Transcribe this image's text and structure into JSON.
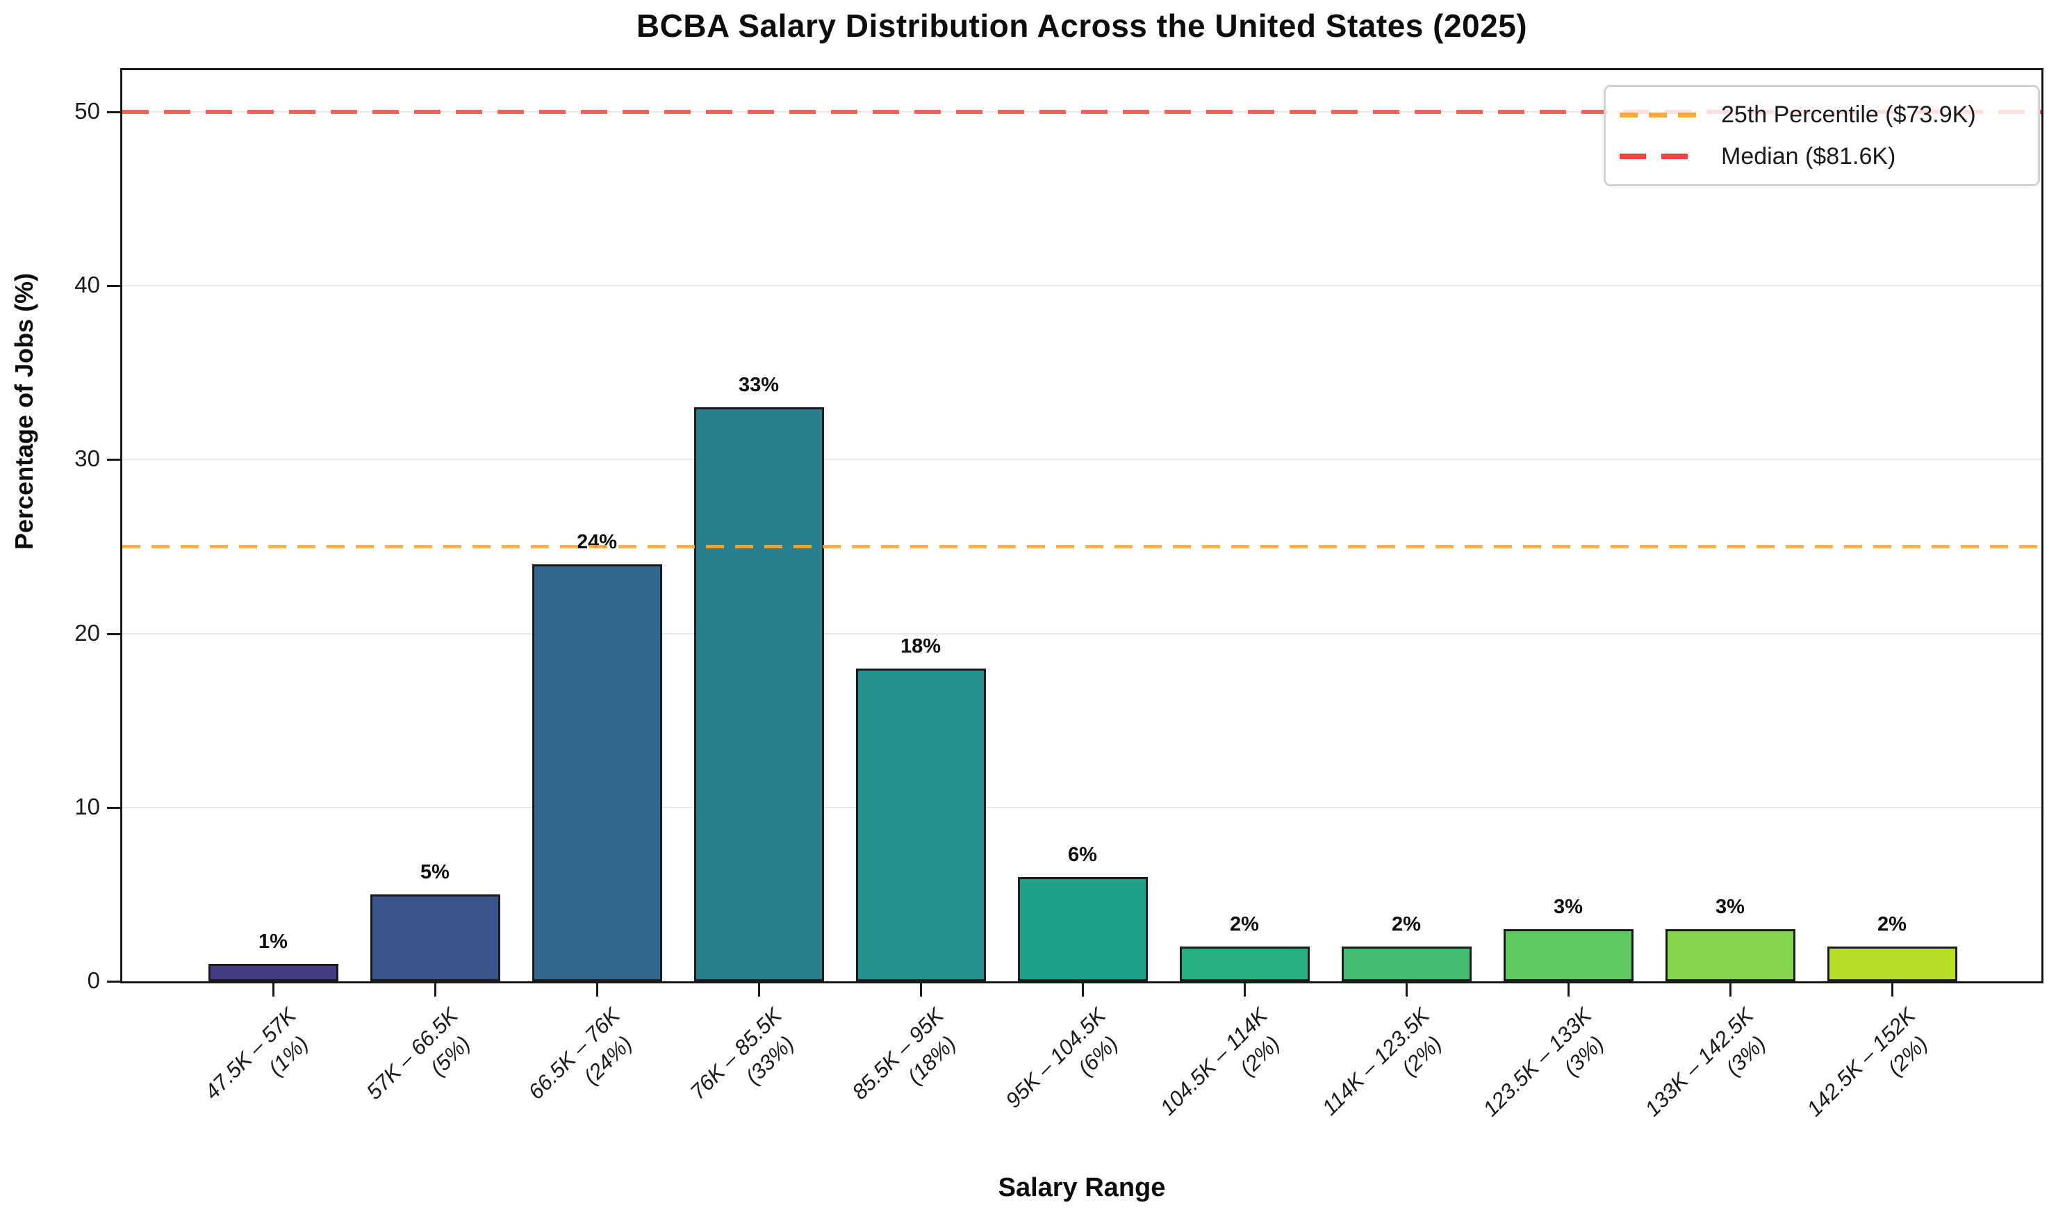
{
  "title": "BCBA Salary Distribution Across the United States (2025)",
  "chart_data": {
    "type": "bar",
    "title": "BCBA Salary Distribution Across the United States (2025)",
    "xlabel": "Salary Range",
    "ylabel": "Percentage of Jobs (%)",
    "ylim": [
      0,
      52.4
    ],
    "yticks": [
      0,
      10,
      20,
      30,
      40,
      50
    ],
    "grid": "horizontal-light-gray",
    "legend_position": "upper right",
    "categories": [
      "47.5K – 57K",
      "57K – 66.5K",
      "66.5K – 76K",
      "76K – 85.5K",
      "85.5K – 95K",
      "95K – 104.5K",
      "104.5K – 114K",
      "114K – 123.5K",
      "123.5K – 133K",
      "133K – 142.5K",
      "142.5K – 152K"
    ],
    "category_sublabels": [
      "(1%)",
      "(5%)",
      "(24%)",
      "(33%)",
      "(18%)",
      "(6%)",
      "(2%)",
      "(2%)",
      "(3%)",
      "(3%)",
      "(2%)"
    ],
    "values": [
      1,
      5,
      24,
      33,
      18,
      6,
      2,
      2,
      3,
      3,
      2
    ],
    "bar_value_labels": [
      "1%",
      "5%",
      "24%",
      "33%",
      "18%",
      "6%",
      "2%",
      "2%",
      "3%",
      "3%",
      "2%"
    ],
    "bar_colors": [
      "#433d84",
      "#3b538b",
      "#34678d",
      "#2a7f8e",
      "#23918c",
      "#1fa088",
      "#28ae80",
      "#42be71",
      "#5ec962",
      "#86d44a",
      "#b8de29"
    ],
    "bar_edge_color": "#1c1c1c",
    "reference_lines": [
      {
        "label": "25th Percentile ($73.9K)",
        "value": 25,
        "color": "#f5a93c",
        "style": "dashed"
      },
      {
        "label": "Median ($81.6K)",
        "value": 50,
        "color": "#ef453f",
        "style": "dashed"
      }
    ]
  }
}
